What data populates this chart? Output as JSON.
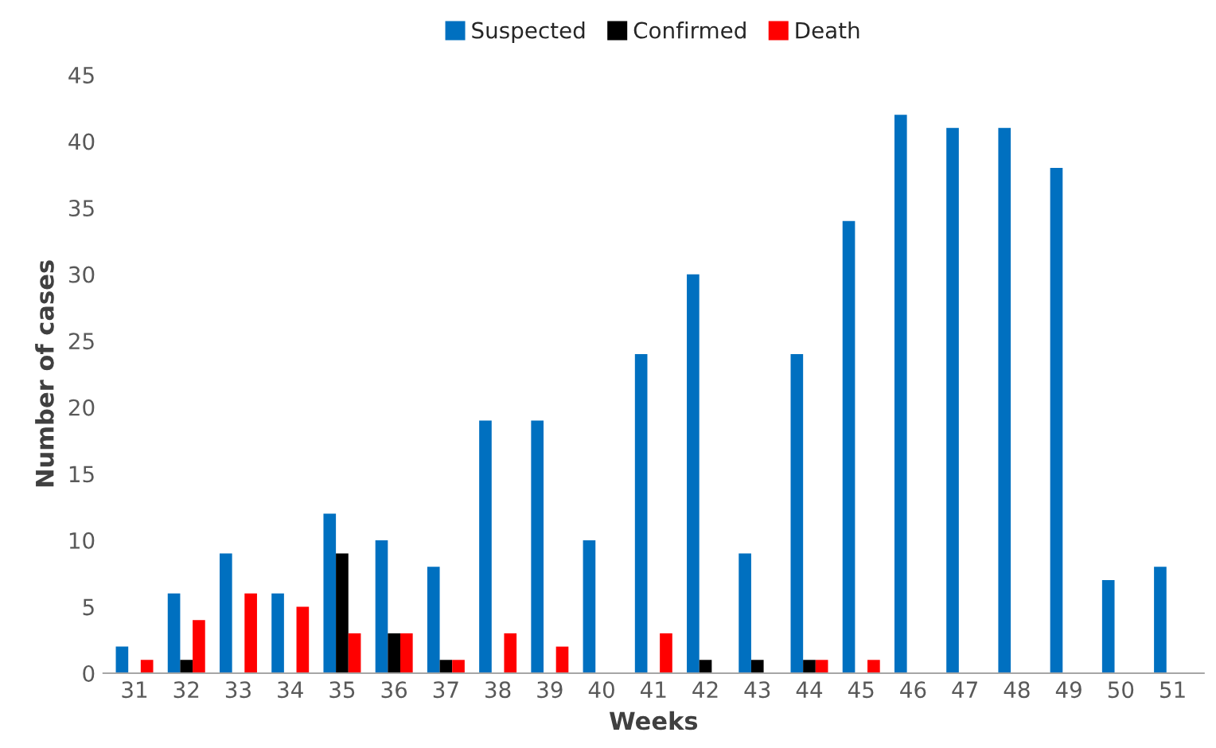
{
  "chart_data": {
    "type": "bar",
    "xlabel": "Weeks",
    "ylabel": "Number of cases",
    "categories": [
      "31",
      "32",
      "33",
      "34",
      "35",
      "36",
      "37",
      "38",
      "39",
      "40",
      "41",
      "42",
      "43",
      "44",
      "45",
      "46",
      "47",
      "48",
      "49",
      "50",
      "51"
    ],
    "series": [
      {
        "name": "Suspected",
        "color": "#0070c0",
        "values": [
          2,
          6,
          9,
          6,
          12,
          10,
          8,
          19,
          19,
          10,
          24,
          30,
          9,
          24,
          34,
          42,
          41,
          41,
          38,
          7,
          8
        ]
      },
      {
        "name": "Confirmed",
        "color": "#000000",
        "values": [
          0,
          1,
          0,
          0,
          9,
          3,
          1,
          0,
          0,
          0,
          0,
          1,
          1,
          1,
          0,
          0,
          0,
          0,
          0,
          0,
          0
        ]
      },
      {
        "name": "Death",
        "color": "#ff0000",
        "values": [
          1,
          4,
          6,
          5,
          3,
          3,
          1,
          3,
          2,
          0,
          3,
          0,
          0,
          1,
          1,
          0,
          0,
          0,
          0,
          0,
          0
        ]
      }
    ],
    "ylim": [
      0,
      45
    ],
    "yticks": [
      0,
      5,
      10,
      15,
      20,
      25,
      30,
      35,
      40,
      45
    ],
    "grid": false,
    "legend": "top"
  }
}
